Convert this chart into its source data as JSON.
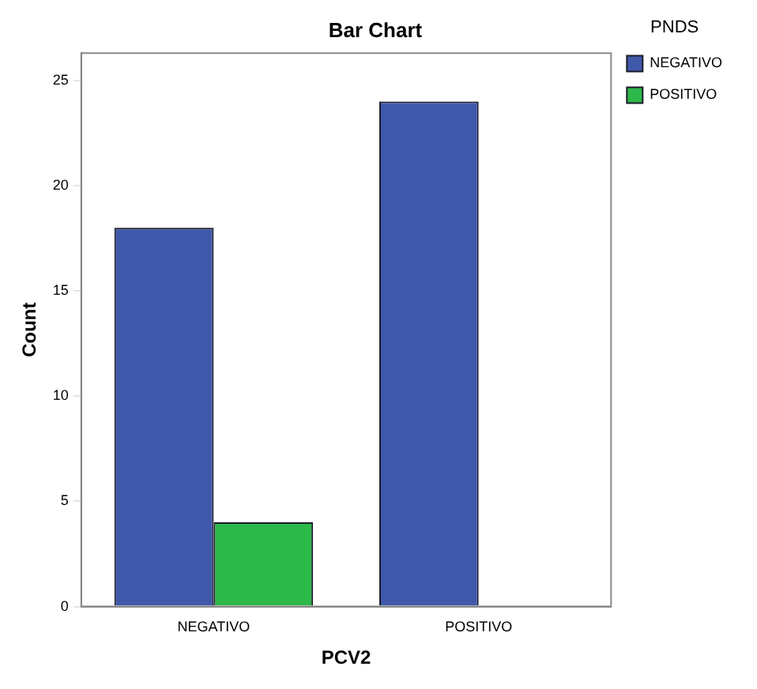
{
  "chart_data": {
    "type": "bar",
    "title": "Bar Chart",
    "xlabel": "PCV2",
    "ylabel": "Count",
    "legend_title": "PNDS",
    "categories": [
      "NEGATIVO",
      "POSITIVO"
    ],
    "series": [
      {
        "name": "NEGATIVO",
        "color": "#3f58aa",
        "values": [
          18,
          24
        ]
      },
      {
        "name": "POSITIVO",
        "color": "#2db84a",
        "values": [
          4,
          null
        ]
      }
    ],
    "ylim": [
      0,
      26.3
    ],
    "yticks": [
      0,
      5,
      10,
      15,
      20,
      25
    ],
    "grid": false,
    "legend": "top right"
  }
}
